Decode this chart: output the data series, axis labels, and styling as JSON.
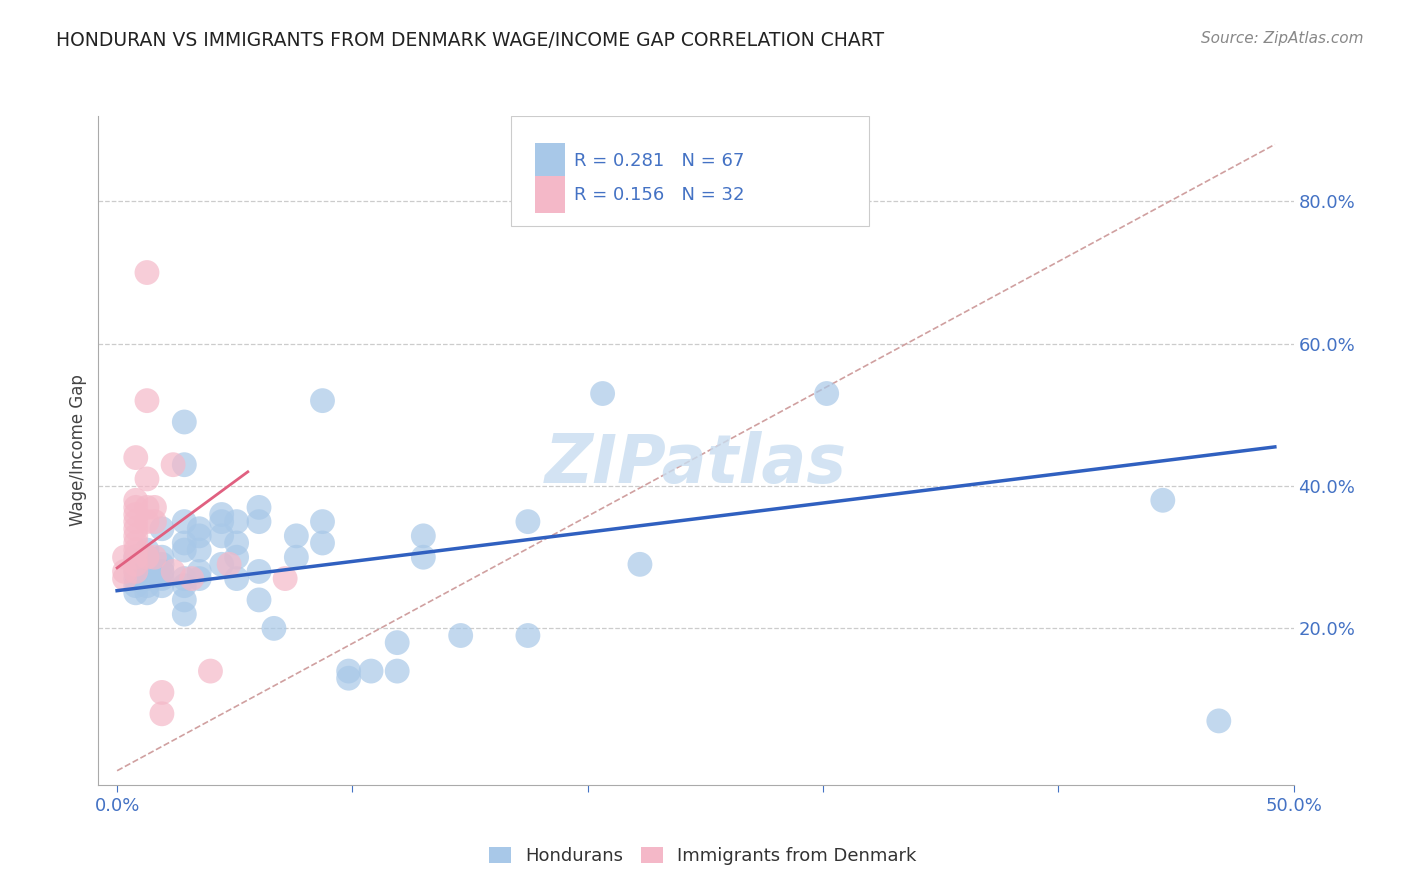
{
  "title": "HONDURAN VS IMMIGRANTS FROM DENMARK WAGE/INCOME GAP CORRELATION CHART",
  "source": "Source: ZipAtlas.com",
  "xlabel_ticks_bottom": [
    "0.0%",
    "",
    "",
    "",
    "",
    "50.0%"
  ],
  "xlabel_vals": [
    0.0,
    0.1,
    0.2,
    0.3,
    0.4,
    0.5
  ],
  "ylabel_ticks": [
    "20.0%",
    "40.0%",
    "60.0%",
    "80.0%"
  ],
  "ylabel_vals": [
    0.2,
    0.4,
    0.6,
    0.8
  ],
  "ylabel_label": "Wage/Income Gap",
  "legend_blue_r": "R = 0.281",
  "legend_blue_n": "N = 67",
  "legend_pink_r": "R = 0.156",
  "legend_pink_n": "N = 32",
  "legend_blue_label": "Hondurans",
  "legend_pink_label": "Immigrants from Denmark",
  "blue_color": "#a8c8e8",
  "pink_color": "#f4b8c8",
  "blue_line_color": "#3060c0",
  "pink_line_color": "#e06080",
  "diag_line_color": "#d0a0a0",
  "text_color_blue": "#4472c4",
  "watermark_color": "#c8ddf0",
  "watermark": "ZIPatlas",
  "blue_dots": [
    [
      0.005,
      0.28
    ],
    [
      0.005,
      0.3
    ],
    [
      0.005,
      0.27
    ],
    [
      0.005,
      0.26
    ],
    [
      0.005,
      0.29
    ],
    [
      0.005,
      0.25
    ],
    [
      0.008,
      0.31
    ],
    [
      0.008,
      0.28
    ],
    [
      0.008,
      0.27
    ],
    [
      0.008,
      0.26
    ],
    [
      0.008,
      0.25
    ],
    [
      0.008,
      0.3
    ],
    [
      0.008,
      0.29
    ],
    [
      0.012,
      0.34
    ],
    [
      0.012,
      0.28
    ],
    [
      0.012,
      0.3
    ],
    [
      0.012,
      0.29
    ],
    [
      0.012,
      0.28
    ],
    [
      0.012,
      0.27
    ],
    [
      0.012,
      0.26
    ],
    [
      0.018,
      0.49
    ],
    [
      0.018,
      0.43
    ],
    [
      0.018,
      0.35
    ],
    [
      0.018,
      0.32
    ],
    [
      0.018,
      0.31
    ],
    [
      0.018,
      0.27
    ],
    [
      0.018,
      0.26
    ],
    [
      0.018,
      0.24
    ],
    [
      0.018,
      0.22
    ],
    [
      0.022,
      0.34
    ],
    [
      0.022,
      0.33
    ],
    [
      0.022,
      0.31
    ],
    [
      0.022,
      0.28
    ],
    [
      0.022,
      0.27
    ],
    [
      0.028,
      0.36
    ],
    [
      0.028,
      0.35
    ],
    [
      0.028,
      0.33
    ],
    [
      0.028,
      0.29
    ],
    [
      0.032,
      0.35
    ],
    [
      0.032,
      0.32
    ],
    [
      0.032,
      0.3
    ],
    [
      0.032,
      0.27
    ],
    [
      0.038,
      0.37
    ],
    [
      0.038,
      0.35
    ],
    [
      0.038,
      0.28
    ],
    [
      0.038,
      0.24
    ],
    [
      0.042,
      0.2
    ],
    [
      0.048,
      0.33
    ],
    [
      0.048,
      0.3
    ],
    [
      0.055,
      0.52
    ],
    [
      0.055,
      0.35
    ],
    [
      0.055,
      0.32
    ],
    [
      0.062,
      0.14
    ],
    [
      0.062,
      0.13
    ],
    [
      0.068,
      0.14
    ],
    [
      0.075,
      0.18
    ],
    [
      0.075,
      0.14
    ],
    [
      0.082,
      0.33
    ],
    [
      0.082,
      0.3
    ],
    [
      0.092,
      0.19
    ],
    [
      0.11,
      0.35
    ],
    [
      0.11,
      0.19
    ],
    [
      0.13,
      0.53
    ],
    [
      0.14,
      0.29
    ],
    [
      0.19,
      0.53
    ],
    [
      0.28,
      0.38
    ],
    [
      0.295,
      0.07
    ]
  ],
  "pink_dots": [
    [
      0.002,
      0.27
    ],
    [
      0.002,
      0.3
    ],
    [
      0.002,
      0.28
    ],
    [
      0.005,
      0.44
    ],
    [
      0.005,
      0.38
    ],
    [
      0.005,
      0.37
    ],
    [
      0.005,
      0.36
    ],
    [
      0.005,
      0.35
    ],
    [
      0.005,
      0.34
    ],
    [
      0.005,
      0.33
    ],
    [
      0.005,
      0.32
    ],
    [
      0.005,
      0.31
    ],
    [
      0.005,
      0.3
    ],
    [
      0.005,
      0.29
    ],
    [
      0.005,
      0.28
    ],
    [
      0.008,
      0.7
    ],
    [
      0.008,
      0.52
    ],
    [
      0.008,
      0.41
    ],
    [
      0.008,
      0.37
    ],
    [
      0.008,
      0.35
    ],
    [
      0.008,
      0.3
    ],
    [
      0.01,
      0.37
    ],
    [
      0.01,
      0.35
    ],
    [
      0.01,
      0.3
    ],
    [
      0.012,
      0.11
    ],
    [
      0.012,
      0.08
    ],
    [
      0.015,
      0.43
    ],
    [
      0.015,
      0.28
    ],
    [
      0.02,
      0.27
    ],
    [
      0.025,
      0.14
    ],
    [
      0.03,
      0.29
    ],
    [
      0.045,
      0.27
    ]
  ],
  "xlim": [
    -0.005,
    0.315
  ],
  "ylim": [
    -0.02,
    0.92
  ],
  "blue_line_x": [
    0.0,
    0.31
  ],
  "blue_line_y": [
    0.253,
    0.455
  ],
  "pink_line_x": [
    0.0,
    0.035
  ],
  "pink_line_y": [
    0.285,
    0.42
  ],
  "diag_line_x": [
    0.0,
    0.31
  ],
  "diag_line_y": [
    0.0,
    0.88
  ]
}
